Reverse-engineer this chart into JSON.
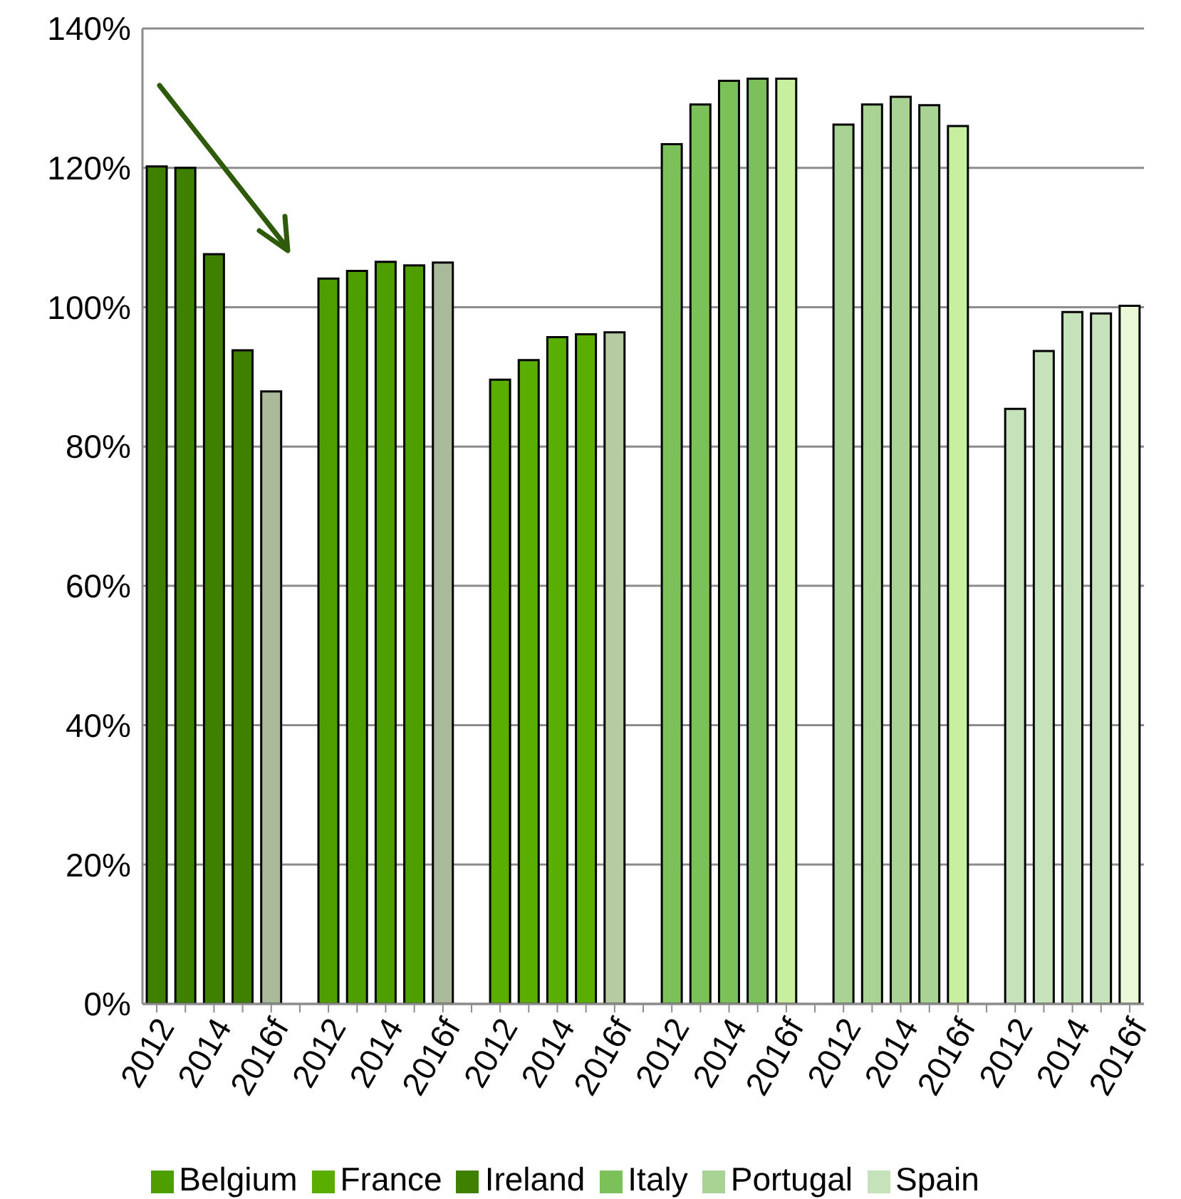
{
  "chart_data": {
    "type": "bar",
    "categories": [
      "2012",
      null,
      "2014",
      null,
      "2016f",
      null,
      "2012",
      null,
      "2014",
      null,
      "2016f",
      null,
      "2012",
      null,
      "2014",
      null,
      "2016f",
      null,
      "2012",
      null,
      "2014",
      null,
      "2016f",
      null,
      "2012",
      null,
      "2014",
      null,
      "2016f",
      null,
      "2012",
      null,
      "2014",
      null,
      "2016f"
    ],
    "series": [
      {
        "name": "Ireland",
        "color": "#3f8000",
        "values": [
          120.2,
          120.0,
          107.6,
          93.8,
          87.9,
          null,
          null,
          null,
          null,
          null,
          null,
          null,
          null,
          null,
          null,
          null,
          null,
          null,
          null,
          null,
          null,
          null,
          null,
          null,
          null,
          null,
          null,
          null,
          null,
          null,
          null,
          null,
          null,
          null,
          null
        ],
        "colors": [
          "#3f8000",
          "#3f8000",
          "#3f8000",
          "#3f8000",
          "#a9b99a",
          null,
          null,
          null,
          null,
          null,
          null,
          null,
          null,
          null,
          null,
          null,
          null,
          null,
          null,
          null,
          null,
          null,
          null,
          null,
          null,
          null,
          null,
          null,
          null,
          null,
          null,
          null,
          null,
          null,
          null
        ]
      },
      {
        "name": "Belgium",
        "color": "#4f9e00",
        "values": [
          null,
          null,
          null,
          null,
          null,
          null,
          104.1,
          105.2,
          106.5,
          106.0,
          106.4,
          null,
          null,
          null,
          null,
          null,
          null,
          null,
          null,
          null,
          null,
          null,
          null,
          null,
          null,
          null,
          null,
          null,
          null,
          null,
          null,
          null,
          null,
          null,
          null
        ],
        "colors": [
          null,
          null,
          null,
          null,
          null,
          null,
          "#4f9e00",
          "#4f9e00",
          "#4f9e00",
          "#4f9e00",
          "#a9b99a",
          null,
          null,
          null,
          null,
          null,
          null,
          null,
          null,
          null,
          null,
          null,
          null,
          null,
          null,
          null,
          null,
          null,
          null,
          null,
          null,
          null,
          null,
          null,
          null
        ]
      },
      {
        "name": "France",
        "color": "#5aae00",
        "values": [
          null,
          null,
          null,
          null,
          null,
          null,
          null,
          null,
          null,
          null,
          null,
          null,
          89.6,
          92.4,
          95.7,
          96.1,
          96.4,
          null,
          null,
          null,
          null,
          null,
          null,
          null,
          null,
          null,
          null,
          null,
          null,
          null,
          null,
          null,
          null,
          null,
          null
        ],
        "colors": [
          null,
          null,
          null,
          null,
          null,
          null,
          null,
          null,
          null,
          null,
          null,
          null,
          "#5aae00",
          "#5aae00",
          "#5aae00",
          "#5aae00",
          "#b5cca0",
          null,
          null,
          null,
          null,
          null,
          null,
          null,
          null,
          null,
          null,
          null,
          null,
          null,
          null,
          null,
          null,
          null,
          null
        ]
      },
      {
        "name": "Italy",
        "color": "#7cc05a",
        "values": [
          null,
          null,
          null,
          null,
          null,
          null,
          null,
          null,
          null,
          null,
          null,
          null,
          null,
          null,
          null,
          null,
          null,
          null,
          123.4,
          129.1,
          132.5,
          132.8,
          132.8,
          null,
          null,
          null,
          null,
          null,
          null,
          null,
          null,
          null,
          null,
          null,
          null
        ],
        "colors": [
          null,
          null,
          null,
          null,
          null,
          null,
          null,
          null,
          null,
          null,
          null,
          null,
          null,
          null,
          null,
          null,
          null,
          null,
          "#7cc05a",
          "#7cc05a",
          "#7cc05a",
          "#7cc05a",
          "#c8eea0",
          null,
          null,
          null,
          null,
          null,
          null,
          null,
          null,
          null,
          null,
          null,
          null
        ]
      },
      {
        "name": "Portugal",
        "color": "#a8d394",
        "values": [
          null,
          null,
          null,
          null,
          null,
          null,
          null,
          null,
          null,
          null,
          null,
          null,
          null,
          null,
          null,
          null,
          null,
          null,
          null,
          null,
          null,
          null,
          null,
          null,
          126.2,
          129.1,
          130.2,
          129.0,
          126.0,
          null,
          null,
          null,
          null,
          null,
          null
        ],
        "colors": [
          null,
          null,
          null,
          null,
          null,
          null,
          null,
          null,
          null,
          null,
          null,
          null,
          null,
          null,
          null,
          null,
          null,
          null,
          null,
          null,
          null,
          null,
          null,
          null,
          "#a8d394",
          "#a8d394",
          "#a8d394",
          "#a8d394",
          "#c8eea0",
          null,
          null,
          null,
          null,
          null,
          null
        ]
      },
      {
        "name": "Spain",
        "color": "#c6e2bb",
        "values": [
          null,
          null,
          null,
          null,
          null,
          null,
          null,
          null,
          null,
          null,
          null,
          null,
          null,
          null,
          null,
          null,
          null,
          null,
          null,
          null,
          null,
          null,
          null,
          null,
          null,
          null,
          null,
          null,
          null,
          null,
          85.4,
          93.7,
          99.3,
          99.1,
          100.2
        ],
        "colors": [
          null,
          null,
          null,
          null,
          null,
          null,
          null,
          null,
          null,
          null,
          null,
          null,
          null,
          null,
          null,
          null,
          null,
          null,
          null,
          null,
          null,
          null,
          null,
          null,
          null,
          null,
          null,
          null,
          null,
          null,
          "#c6e2bb",
          "#c6e2bb",
          "#c6e2bb",
          "#c6e2bb",
          "#eaf8d8"
        ]
      }
    ],
    "ylim": [
      0,
      140
    ],
    "yticks": [
      {
        "value": 0,
        "label": "0%"
      },
      {
        "value": 20,
        "label": "20%"
      },
      {
        "value": 40,
        "label": "40%"
      },
      {
        "value": 60,
        "label": "60%"
      },
      {
        "value": 80,
        "label": "80%"
      },
      {
        "value": 100,
        "label": "100%"
      },
      {
        "value": 120,
        "label": "120%"
      },
      {
        "value": 140,
        "label": "140%"
      }
    ],
    "grid": "y",
    "legend": "bottom"
  }
}
